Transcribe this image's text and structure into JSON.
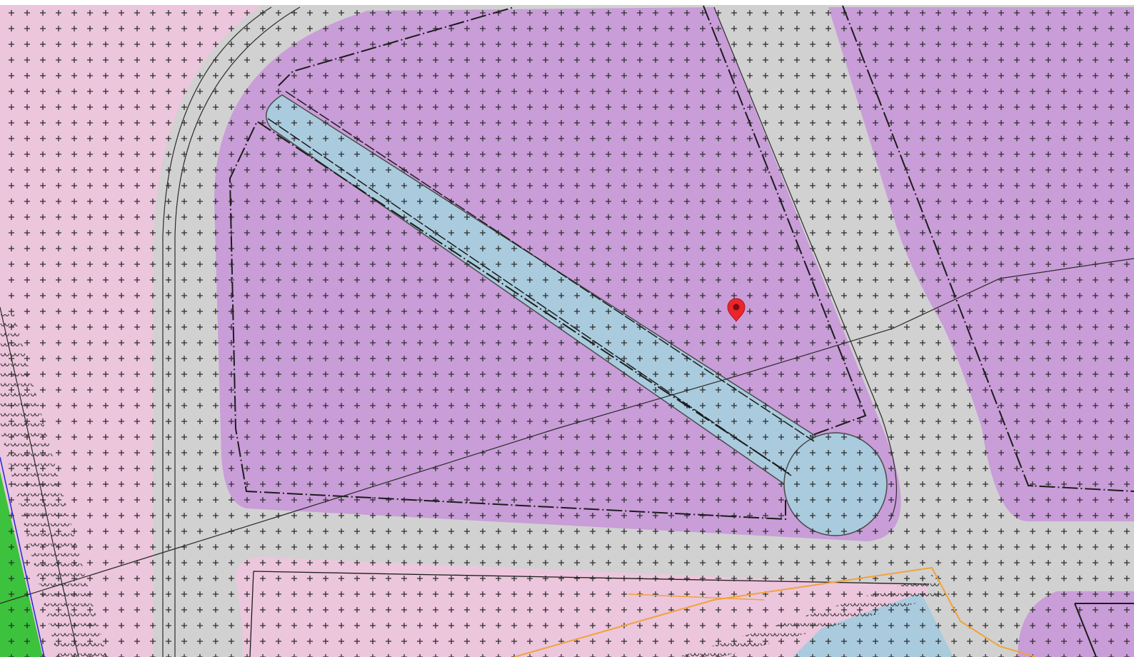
{
  "map": {
    "type": "zoning-plan",
    "legend_colors": {
      "residential_pink": "#ecc6dc",
      "commercial_purple": "#c99dd8",
      "road_grey": "#d1d1d1",
      "water_blue": "#a9cbdd",
      "green_area": "#3cc23d",
      "cable_orange": "#f0a33a",
      "boundary_blue": "#1f2ad8",
      "pattern_cross": "#333333",
      "outline": "#1c1c1c"
    },
    "marker": {
      "icon": "map-pin-icon",
      "color": "#e8262b"
    }
  }
}
